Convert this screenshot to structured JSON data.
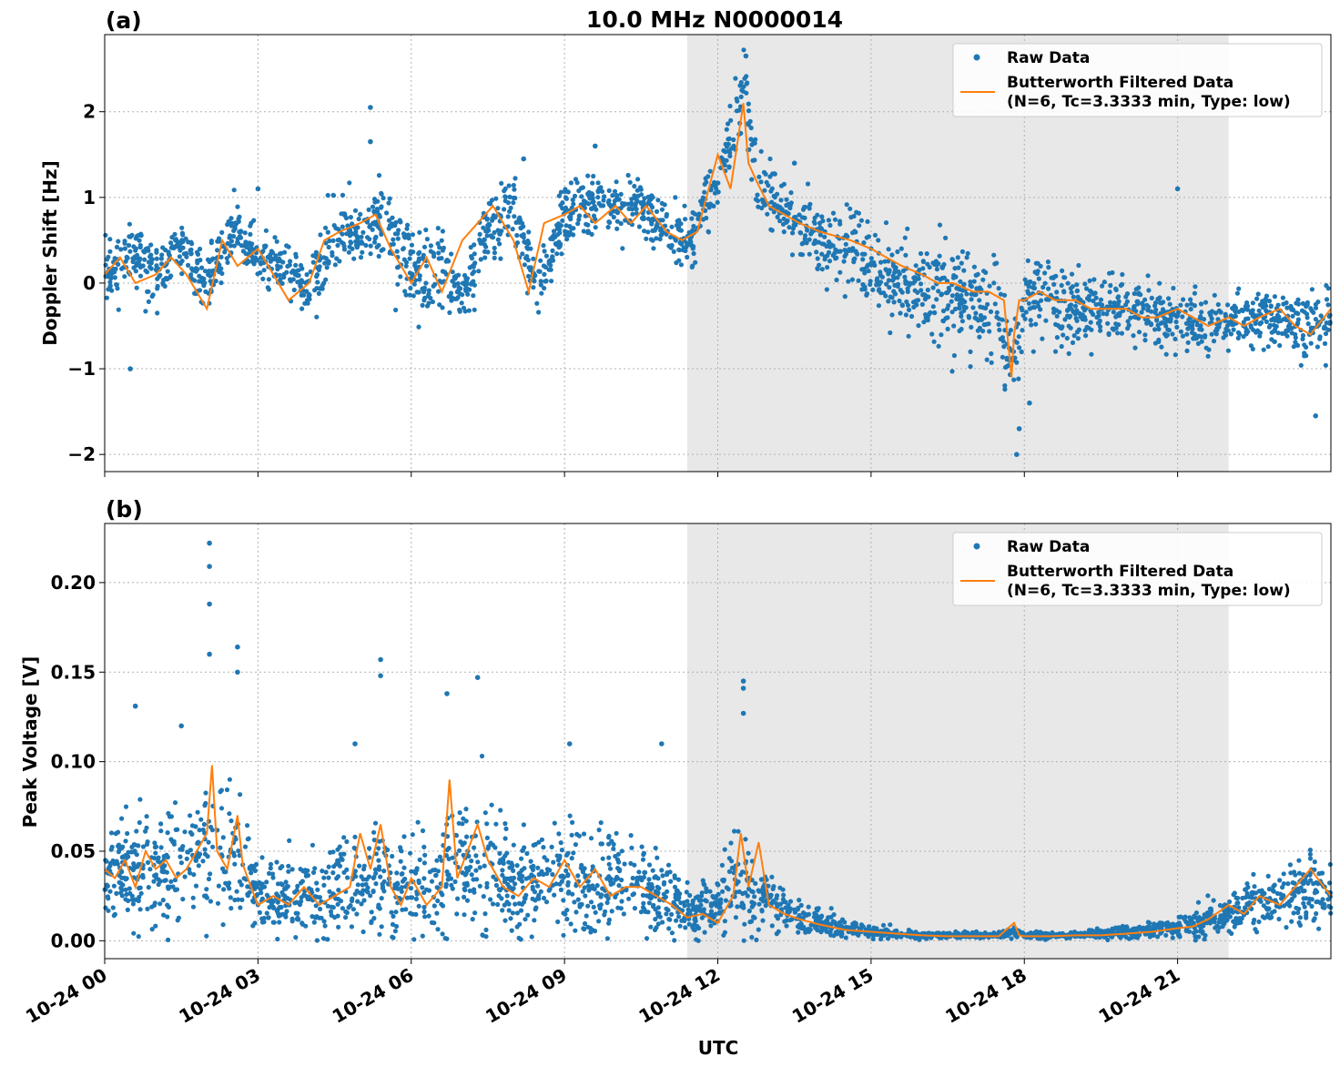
{
  "figure": {
    "title": "10.0 MHz N0000014",
    "xlabel": "UTC",
    "colors": {
      "raw": "#1f77b4",
      "filtered": "#ff7f0e",
      "shade": "#e8e8e8"
    }
  },
  "chart_data": [
    {
      "type": "scatter",
      "panel_label": "(a)",
      "title": "10.0 MHz N0000014",
      "ylabel": "Doppler Shift [Hz]",
      "xlabel": "",
      "xlim_hours": [
        0,
        24
      ],
      "ylim": [
        -2.2,
        2.9
      ],
      "yticks": [
        2,
        1,
        0,
        -1,
        -2
      ],
      "ytick_labels": [
        "2",
        "1",
        "0",
        "−1",
        "−2"
      ],
      "grid": true,
      "legend_position": "top-right",
      "shaded_interval_hours": [
        11.4,
        22.0
      ],
      "series": [
        {
          "name": "Raw Data",
          "kind": "points",
          "x": [
            0,
            0.5,
            1,
            1.5,
            2,
            2.5,
            3,
            3.5,
            4,
            4.5,
            5,
            5.5,
            6,
            6.5,
            7,
            7.5,
            8,
            8.5,
            9,
            9.5,
            10,
            10.5,
            11,
            11.5,
            12,
            12.25,
            12.5,
            12.6,
            12.75,
            13,
            13.5,
            14,
            14.5,
            15,
            15.5,
            16,
            16.5,
            17,
            17.5,
            17.8,
            18,
            18.5,
            19,
            19.5,
            20,
            20.5,
            21,
            21.5,
            22,
            22.5,
            23,
            23.5,
            24
          ],
          "y": [
            0.1,
            0.4,
            0.1,
            0.4,
            0,
            0.6,
            0.3,
            0.2,
            -0.1,
            0.6,
            0.6,
            0.7,
            0.1,
            0.1,
            -0.2,
            0.6,
            0.9,
            -0.1,
            0.8,
            0.9,
            0.9,
            0.9,
            0.6,
            0.5,
            1.3,
            1.6,
            2.4,
            1.9,
            1.2,
            1,
            0.7,
            0.5,
            0.4,
            0.2,
            0.1,
            -0.1,
            -0.1,
            -0.2,
            -0.3,
            -1.1,
            -0.2,
            -0.2,
            -0.3,
            -0.3,
            -0.3,
            -0.4,
            -0.4,
            -0.5,
            -0.5,
            -0.4,
            -0.4,
            -0.5,
            -0.5
          ],
          "spread": [
            0.3,
            0.3,
            0.3,
            0.3,
            0.3,
            0.3,
            0.3,
            0.3,
            0.35,
            0.35,
            0.4,
            0.4,
            0.45,
            0.45,
            0.4,
            0.35,
            0.35,
            0.35,
            0.3,
            0.3,
            0.3,
            0.3,
            0.3,
            0.3,
            0.3,
            0.35,
            0.35,
            0.35,
            0.35,
            0.35,
            0.3,
            0.35,
            0.35,
            0.4,
            0.45,
            0.5,
            0.5,
            0.5,
            0.5,
            0.5,
            0.45,
            0.45,
            0.4,
            0.35,
            0.35,
            0.3,
            0.3,
            0.3,
            0.25,
            0.25,
            0.3,
            0.4,
            0.4
          ],
          "outliers": [
            [
              5.2,
              2.05
            ],
            [
              5.2,
              1.65
            ],
            [
              8.2,
              1.45
            ],
            [
              9.6,
              1.6
            ],
            [
              12.55,
              2.65
            ],
            [
              17.85,
              -2.0
            ],
            [
              17.9,
              -1.7
            ],
            [
              23.7,
              -1.55
            ],
            [
              0.5,
              -1.0
            ],
            [
              3.0,
              1.1
            ],
            [
              13.5,
              1.4
            ],
            [
              18.1,
              -1.4
            ],
            [
              21,
              1.1
            ]
          ]
        },
        {
          "name": "Butterworth Filtered Data\n(N=6, Tc=3.3333 min, Type: low)",
          "kind": "line",
          "x": [
            0,
            0.3,
            0.6,
            1,
            1.3,
            1.6,
            2,
            2.3,
            2.6,
            3,
            3.3,
            3.6,
            4,
            4.3,
            4.6,
            5,
            5.3,
            5.6,
            6,
            6.3,
            6.6,
            7,
            7.3,
            7.6,
            8,
            8.3,
            8.6,
            9,
            9.3,
            9.6,
            10,
            10.3,
            10.6,
            11,
            11.3,
            11.6,
            12,
            12.25,
            12.5,
            12.6,
            12.75,
            13,
            13.3,
            13.6,
            14,
            14.3,
            14.6,
            15,
            15.3,
            15.6,
            16,
            16.3,
            16.6,
            17,
            17.3,
            17.6,
            17.75,
            17.8,
            17.9,
            18,
            18.3,
            18.6,
            19,
            19.3,
            19.6,
            20,
            20.3,
            20.6,
            21,
            21.3,
            21.6,
            22,
            22.3,
            22.6,
            23,
            23.3,
            23.6,
            24
          ],
          "y": [
            0.1,
            0.3,
            0,
            0.1,
            0.3,
            0.1,
            -0.3,
            0.5,
            0.2,
            0.4,
            0.1,
            -0.2,
            0,
            0.5,
            0.6,
            0.7,
            0.8,
            0.4,
            0,
            0.3,
            -0.1,
            0.5,
            0.7,
            0.9,
            0.5,
            -0.1,
            0.7,
            0.8,
            0.9,
            0.7,
            0.9,
            0.7,
            0.9,
            0.6,
            0.5,
            0.6,
            1.5,
            1.1,
            2.1,
            1.4,
            1.2,
            0.9,
            0.8,
            0.7,
            0.6,
            0.55,
            0.5,
            0.4,
            0.3,
            0.2,
            0.1,
            0,
            0,
            -0.1,
            -0.1,
            -0.2,
            -1.1,
            -0.6,
            -0.2,
            -0.2,
            -0.1,
            -0.2,
            -0.2,
            -0.3,
            -0.3,
            -0.3,
            -0.4,
            -0.4,
            -0.3,
            -0.4,
            -0.5,
            -0.4,
            -0.5,
            -0.4,
            -0.3,
            -0.5,
            -0.6,
            -0.3
          ]
        }
      ]
    },
    {
      "type": "scatter",
      "panel_label": "(b)",
      "title": "",
      "ylabel": "Peak Voltage [V]",
      "xlabel": "UTC",
      "xlim_hours": [
        0,
        24
      ],
      "ylim": [
        -0.01,
        0.233
      ],
      "yticks": [
        0.2,
        0.15,
        0.1,
        0.05,
        0.0
      ],
      "ytick_labels": [
        "0.20",
        "0.15",
        "0.10",
        "0.05",
        "0.00"
      ],
      "xtick_hours": [
        0,
        3,
        6,
        9,
        12,
        15,
        18,
        21
      ],
      "xtick_labels": [
        "10-24 00",
        "10-24 03",
        "10-24 06",
        "10-24 09",
        "10-24 12",
        "10-24 15",
        "10-24 18",
        "10-24 21"
      ],
      "grid": true,
      "legend_position": "top-right",
      "shaded_interval_hours": [
        11.4,
        22.0
      ],
      "series": [
        {
          "name": "Raw Data",
          "kind": "points",
          "x": [
            0,
            0.5,
            1,
            1.5,
            2,
            2.3,
            2.6,
            3,
            3.5,
            4,
            4.5,
            5,
            5.5,
            6,
            6.5,
            6.75,
            7,
            7.3,
            7.6,
            8,
            8.5,
            9,
            9.5,
            10,
            10.5,
            11,
            11.5,
            12,
            12.4,
            12.8,
            13.2,
            13.6,
            14,
            14.5,
            15,
            15.5,
            16,
            16.5,
            17,
            17.5,
            17.8,
            18,
            18.5,
            19,
            19.5,
            20,
            20.5,
            21,
            21.5,
            22,
            22.5,
            23,
            23.5,
            24
          ],
          "y": [
            0.035,
            0.04,
            0.04,
            0.04,
            0.05,
            0.045,
            0.05,
            0.025,
            0.025,
            0.025,
            0.03,
            0.035,
            0.03,
            0.03,
            0.035,
            0.045,
            0.04,
            0.045,
            0.035,
            0.03,
            0.03,
            0.035,
            0.03,
            0.03,
            0.028,
            0.025,
            0.015,
            0.02,
            0.035,
            0.025,
            0.018,
            0.012,
            0.009,
            0.007,
            0.005,
            0.004,
            0.003,
            0.003,
            0.003,
            0.003,
            0.005,
            0.003,
            0.003,
            0.003,
            0.004,
            0.005,
            0.006,
            0.008,
            0.012,
            0.015,
            0.02,
            0.025,
            0.03,
            0.025
          ],
          "spread": [
            0.025,
            0.03,
            0.03,
            0.03,
            0.035,
            0.035,
            0.035,
            0.02,
            0.02,
            0.02,
            0.025,
            0.03,
            0.025,
            0.025,
            0.03,
            0.035,
            0.035,
            0.035,
            0.03,
            0.025,
            0.025,
            0.03,
            0.025,
            0.025,
            0.02,
            0.02,
            0.012,
            0.015,
            0.025,
            0.018,
            0.012,
            0.008,
            0.006,
            0.004,
            0.003,
            0.002,
            0.0015,
            0.0015,
            0.0015,
            0.0015,
            0.003,
            0.0015,
            0.0015,
            0.0015,
            0.002,
            0.003,
            0.004,
            0.005,
            0.008,
            0.01,
            0.012,
            0.015,
            0.018,
            0.015
          ],
          "outliers": [
            [
              2.05,
              0.222
            ],
            [
              2.05,
              0.209
            ],
            [
              2.05,
              0.188
            ],
            [
              2.05,
              0.16
            ],
            [
              2.6,
              0.164
            ],
            [
              2.6,
              0.15
            ],
            [
              5.4,
              0.157
            ],
            [
              5.4,
              0.148
            ],
            [
              7.3,
              0.147
            ],
            [
              6.7,
              0.138
            ],
            [
              12.5,
              0.145
            ],
            [
              12.5,
              0.141
            ],
            [
              12.5,
              0.127
            ],
            [
              0.6,
              0.131
            ],
            [
              1.5,
              0.12
            ],
            [
              4.9,
              0.11
            ],
            [
              9.1,
              0.11
            ],
            [
              10.9,
              0.11
            ]
          ]
        },
        {
          "name": "Butterworth Filtered Data\n(N=6, Tc=3.3333 min, Type: low)",
          "kind": "line",
          "x": [
            0,
            0.2,
            0.4,
            0.6,
            0.8,
            1,
            1.2,
            1.4,
            1.6,
            1.8,
            2,
            2.1,
            2.2,
            2.4,
            2.6,
            2.7,
            2.8,
            3,
            3.3,
            3.6,
            3.9,
            4.2,
            4.5,
            4.8,
            5,
            5.2,
            5.4,
            5.6,
            5.8,
            6,
            6.3,
            6.6,
            6.75,
            6.9,
            7.1,
            7.3,
            7.5,
            7.8,
            8.1,
            8.4,
            8.7,
            9,
            9.3,
            9.6,
            9.9,
            10.2,
            10.5,
            10.8,
            11.1,
            11.4,
            11.7,
            12,
            12.3,
            12.45,
            12.6,
            12.8,
            13,
            13.3,
            13.6,
            14,
            14.5,
            15,
            15.5,
            16,
            16.5,
            17,
            17.5,
            17.8,
            17.9,
            18,
            18.5,
            19,
            19.5,
            20,
            20.5,
            21,
            21.3,
            21.6,
            22,
            22.3,
            22.6,
            23,
            23.3,
            23.6,
            24
          ],
          "y": [
            0.04,
            0.035,
            0.045,
            0.03,
            0.05,
            0.04,
            0.045,
            0.035,
            0.04,
            0.05,
            0.06,
            0.098,
            0.05,
            0.04,
            0.07,
            0.043,
            0.035,
            0.02,
            0.025,
            0.02,
            0.03,
            0.02,
            0.025,
            0.03,
            0.06,
            0.04,
            0.065,
            0.03,
            0.02,
            0.035,
            0.02,
            0.03,
            0.09,
            0.035,
            0.05,
            0.065,
            0.045,
            0.03,
            0.025,
            0.035,
            0.03,
            0.045,
            0.03,
            0.04,
            0.025,
            0.03,
            0.03,
            0.025,
            0.02,
            0.013,
            0.015,
            0.01,
            0.025,
            0.06,
            0.03,
            0.055,
            0.02,
            0.015,
            0.012,
            0.009,
            0.006,
            0.005,
            0.004,
            0.003,
            0.0025,
            0.0025,
            0.0025,
            0.01,
            0.003,
            0.0025,
            0.0025,
            0.003,
            0.003,
            0.004,
            0.005,
            0.007,
            0.008,
            0.012,
            0.02,
            0.015,
            0.025,
            0.02,
            0.03,
            0.04,
            0.025
          ]
        }
      ]
    }
  ],
  "legend": {
    "raw_label": "Raw Data",
    "filtered_label_line1": "Butterworth Filtered Data",
    "filtered_label_line2": "(N=6, Tc=3.3333 min, Type: low)"
  }
}
